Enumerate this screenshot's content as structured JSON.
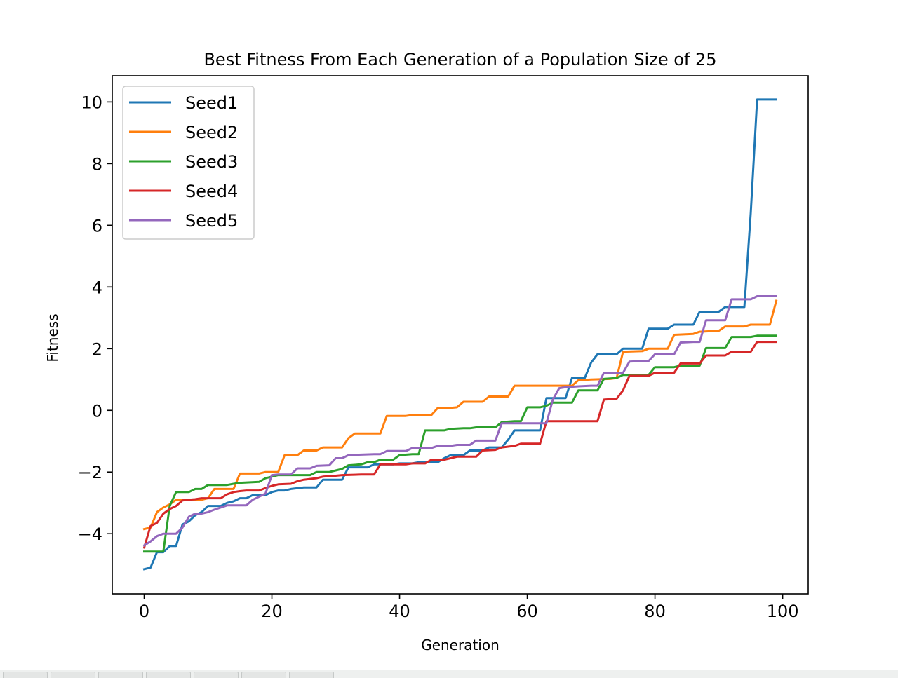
{
  "chart_data": {
    "type": "line",
    "title": "Best Fitness From Each Generation of a Population Size of 25",
    "xlabel": "Generation",
    "ylabel": "Fitness",
    "xlim": [
      -5,
      104
    ],
    "ylim": [
      -5.95,
      10.85
    ],
    "xticks": [
      0,
      20,
      40,
      60,
      80,
      100
    ],
    "xtick_labels": [
      "0",
      "20",
      "40",
      "60",
      "80",
      "100"
    ],
    "yticks": [
      -4,
      -2,
      0,
      2,
      4,
      6,
      8,
      10
    ],
    "ytick_labels": [
      "−4",
      "−2",
      "0",
      "2",
      "4",
      "6",
      "8",
      "10"
    ],
    "grid": false,
    "legend_position": "upper-left",
    "series": [
      {
        "name": "Seed1",
        "color": "#1f77b4",
        "points": [
          [
            0,
            -5.15
          ],
          [
            1,
            -5.1
          ],
          [
            2,
            -4.6
          ],
          [
            3,
            -4.6
          ],
          [
            4,
            -4.4
          ],
          [
            5,
            -4.4
          ],
          [
            6,
            -3.7
          ],
          [
            7,
            -3.6
          ],
          [
            8,
            -3.4
          ],
          [
            9,
            -3.3
          ],
          [
            10,
            -3.1
          ],
          [
            12,
            -3.1
          ],
          [
            13,
            -3.0
          ],
          [
            14,
            -2.95
          ],
          [
            15,
            -2.85
          ],
          [
            16,
            -2.85
          ],
          [
            17,
            -2.75
          ],
          [
            19,
            -2.75
          ],
          [
            20,
            -2.65
          ],
          [
            21,
            -2.6
          ],
          [
            22,
            -2.6
          ],
          [
            23,
            -2.55
          ],
          [
            25,
            -2.5
          ],
          [
            27,
            -2.5
          ],
          [
            28,
            -2.25
          ],
          [
            31,
            -2.25
          ],
          [
            32,
            -1.85
          ],
          [
            35,
            -1.85
          ],
          [
            36,
            -1.75
          ],
          [
            39,
            -1.75
          ],
          [
            40,
            -1.72
          ],
          [
            42,
            -1.72
          ],
          [
            43,
            -1.68
          ],
          [
            46,
            -1.68
          ],
          [
            47,
            -1.55
          ],
          [
            48,
            -1.45
          ],
          [
            50,
            -1.45
          ],
          [
            51,
            -1.3
          ],
          [
            53,
            -1.3
          ],
          [
            54,
            -1.2
          ],
          [
            56,
            -1.2
          ],
          [
            57,
            -0.95
          ],
          [
            58,
            -0.65
          ],
          [
            61,
            -0.65
          ],
          [
            62,
            -0.65
          ],
          [
            63,
            0.4
          ],
          [
            64,
            0.4
          ],
          [
            66,
            0.4
          ],
          [
            67,
            1.05
          ],
          [
            69,
            1.05
          ],
          [
            70,
            1.55
          ],
          [
            71,
            1.82
          ],
          [
            74,
            1.82
          ],
          [
            75,
            2.0
          ],
          [
            78,
            2.0
          ],
          [
            79,
            2.65
          ],
          [
            82,
            2.65
          ],
          [
            83,
            2.78
          ],
          [
            86,
            2.78
          ],
          [
            87,
            3.2
          ],
          [
            90,
            3.2
          ],
          [
            91,
            3.35
          ],
          [
            94,
            3.35
          ],
          [
            95,
            6.4
          ],
          [
            96,
            10.08
          ],
          [
            97,
            10.08
          ],
          [
            99,
            10.08
          ]
        ]
      },
      {
        "name": "Seed2",
        "color": "#ff7f0e",
        "points": [
          [
            0,
            -3.85
          ],
          [
            1,
            -3.8
          ],
          [
            2,
            -3.3
          ],
          [
            3,
            -3.15
          ],
          [
            4,
            -3.05
          ],
          [
            5,
            -2.9
          ],
          [
            6,
            -2.9
          ],
          [
            9,
            -2.9
          ],
          [
            10,
            -2.85
          ],
          [
            11,
            -2.55
          ],
          [
            14,
            -2.55
          ],
          [
            15,
            -2.05
          ],
          [
            18,
            -2.05
          ],
          [
            19,
            -2.0
          ],
          [
            21,
            -2.0
          ],
          [
            22,
            -1.45
          ],
          [
            24,
            -1.45
          ],
          [
            25,
            -1.3
          ],
          [
            27,
            -1.3
          ],
          [
            28,
            -1.2
          ],
          [
            31,
            -1.2
          ],
          [
            32,
            -0.9
          ],
          [
            33,
            -0.75
          ],
          [
            37,
            -0.75
          ],
          [
            38,
            -0.18
          ],
          [
            41,
            -0.18
          ],
          [
            42,
            -0.15
          ],
          [
            45,
            -0.15
          ],
          [
            46,
            0.08
          ],
          [
            48,
            0.08
          ],
          [
            49,
            0.1
          ],
          [
            50,
            0.28
          ],
          [
            53,
            0.28
          ],
          [
            54,
            0.45
          ],
          [
            57,
            0.45
          ],
          [
            58,
            0.8
          ],
          [
            67,
            0.8
          ],
          [
            68,
            0.98
          ],
          [
            70,
            1.0
          ],
          [
            73,
            1.02
          ],
          [
            74,
            1.05
          ],
          [
            75,
            1.9
          ],
          [
            78,
            1.92
          ],
          [
            79,
            2.0
          ],
          [
            82,
            2.0
          ],
          [
            83,
            2.45
          ],
          [
            86,
            2.48
          ],
          [
            87,
            2.55
          ],
          [
            90,
            2.58
          ],
          [
            91,
            2.72
          ],
          [
            94,
            2.72
          ],
          [
            95,
            2.78
          ],
          [
            98,
            2.78
          ],
          [
            99,
            3.55
          ]
        ]
      },
      {
        "name": "Seed3",
        "color": "#2ca02c",
        "points": [
          [
            0,
            -4.58
          ],
          [
            3,
            -4.58
          ],
          [
            4,
            -3.1
          ],
          [
            5,
            -2.65
          ],
          [
            7,
            -2.65
          ],
          [
            8,
            -2.55
          ],
          [
            9,
            -2.55
          ],
          [
            10,
            -2.42
          ],
          [
            13,
            -2.42
          ],
          [
            14,
            -2.38
          ],
          [
            15,
            -2.35
          ],
          [
            18,
            -2.32
          ],
          [
            19,
            -2.2
          ],
          [
            20,
            -2.15
          ],
          [
            21,
            -2.1
          ],
          [
            26,
            -2.1
          ],
          [
            27,
            -2.0
          ],
          [
            29,
            -2.0
          ],
          [
            30,
            -1.95
          ],
          [
            31,
            -1.9
          ],
          [
            32,
            -1.78
          ],
          [
            34,
            -1.75
          ],
          [
            35,
            -1.68
          ],
          [
            36,
            -1.68
          ],
          [
            37,
            -1.6
          ],
          [
            39,
            -1.6
          ],
          [
            40,
            -1.45
          ],
          [
            42,
            -1.42
          ],
          [
            43,
            -1.42
          ],
          [
            44,
            -0.65
          ],
          [
            47,
            -0.65
          ],
          [
            48,
            -0.6
          ],
          [
            50,
            -0.58
          ],
          [
            51,
            -0.58
          ],
          [
            52,
            -0.55
          ],
          [
            55,
            -0.55
          ],
          [
            56,
            -0.38
          ],
          [
            58,
            -0.35
          ],
          [
            59,
            -0.35
          ],
          [
            60,
            0.1
          ],
          [
            62,
            0.1
          ],
          [
            63,
            0.15
          ],
          [
            64,
            0.25
          ],
          [
            67,
            0.25
          ],
          [
            68,
            0.65
          ],
          [
            71,
            0.65
          ],
          [
            72,
            1.02
          ],
          [
            74,
            1.05
          ],
          [
            75,
            1.15
          ],
          [
            79,
            1.15
          ],
          [
            80,
            1.4
          ],
          [
            83,
            1.4
          ],
          [
            84,
            1.45
          ],
          [
            87,
            1.45
          ],
          [
            88,
            2.02
          ],
          [
            91,
            2.02
          ],
          [
            92,
            2.38
          ],
          [
            95,
            2.38
          ],
          [
            96,
            2.42
          ],
          [
            99,
            2.42
          ]
        ]
      },
      {
        "name": "Seed4",
        "color": "#d62728",
        "points": [
          [
            0,
            -4.45
          ],
          [
            1,
            -3.75
          ],
          [
            2,
            -3.65
          ],
          [
            3,
            -3.35
          ],
          [
            4,
            -3.2
          ],
          [
            5,
            -3.1
          ],
          [
            6,
            -2.92
          ],
          [
            7,
            -2.9
          ],
          [
            8,
            -2.88
          ],
          [
            9,
            -2.85
          ],
          [
            10,
            -2.85
          ],
          [
            12,
            -2.85
          ],
          [
            13,
            -2.72
          ],
          [
            14,
            -2.65
          ],
          [
            15,
            -2.62
          ],
          [
            16,
            -2.6
          ],
          [
            18,
            -2.6
          ],
          [
            19,
            -2.52
          ],
          [
            20,
            -2.45
          ],
          [
            21,
            -2.4
          ],
          [
            23,
            -2.38
          ],
          [
            24,
            -2.3
          ],
          [
            25,
            -2.25
          ],
          [
            27,
            -2.2
          ],
          [
            28,
            -2.15
          ],
          [
            30,
            -2.12
          ],
          [
            31,
            -2.1
          ],
          [
            34,
            -2.08
          ],
          [
            36,
            -2.08
          ],
          [
            37,
            -1.75
          ],
          [
            41,
            -1.75
          ],
          [
            42,
            -1.72
          ],
          [
            44,
            -1.72
          ],
          [
            45,
            -1.6
          ],
          [
            47,
            -1.6
          ],
          [
            48,
            -1.55
          ],
          [
            49,
            -1.5
          ],
          [
            52,
            -1.5
          ],
          [
            53,
            -1.3
          ],
          [
            55,
            -1.28
          ],
          [
            56,
            -1.2
          ],
          [
            58,
            -1.15
          ],
          [
            59,
            -1.08
          ],
          [
            62,
            -1.08
          ],
          [
            63,
            -0.35
          ],
          [
            70,
            -0.35
          ],
          [
            71,
            -0.35
          ],
          [
            72,
            0.35
          ],
          [
            74,
            0.38
          ],
          [
            75,
            0.65
          ],
          [
            76,
            1.12
          ],
          [
            79,
            1.12
          ],
          [
            80,
            1.22
          ],
          [
            83,
            1.22
          ],
          [
            84,
            1.52
          ],
          [
            87,
            1.52
          ],
          [
            88,
            1.78
          ],
          [
            91,
            1.78
          ],
          [
            92,
            1.9
          ],
          [
            95,
            1.9
          ],
          [
            96,
            2.22
          ],
          [
            99,
            2.22
          ]
        ]
      },
      {
        "name": "Seed5",
        "color": "#9467bd",
        "points": [
          [
            0,
            -4.38
          ],
          [
            1,
            -4.25
          ],
          [
            2,
            -4.08
          ],
          [
            3,
            -4.0
          ],
          [
            5,
            -4.0
          ],
          [
            6,
            -3.8
          ],
          [
            7,
            -3.45
          ],
          [
            8,
            -3.35
          ],
          [
            9,
            -3.35
          ],
          [
            10,
            -3.3
          ],
          [
            11,
            -3.22
          ],
          [
            12,
            -3.15
          ],
          [
            13,
            -3.08
          ],
          [
            16,
            -3.08
          ],
          [
            17,
            -2.9
          ],
          [
            19,
            -2.7
          ],
          [
            20,
            -2.1
          ],
          [
            21,
            -2.08
          ],
          [
            23,
            -2.08
          ],
          [
            24,
            -1.88
          ],
          [
            26,
            -1.88
          ],
          [
            27,
            -1.8
          ],
          [
            29,
            -1.78
          ],
          [
            30,
            -1.55
          ],
          [
            31,
            -1.55
          ],
          [
            32,
            -1.45
          ],
          [
            36,
            -1.42
          ],
          [
            37,
            -1.42
          ],
          [
            38,
            -1.32
          ],
          [
            41,
            -1.32
          ],
          [
            42,
            -1.22
          ],
          [
            45,
            -1.22
          ],
          [
            46,
            -1.15
          ],
          [
            48,
            -1.15
          ],
          [
            49,
            -1.12
          ],
          [
            51,
            -1.12
          ],
          [
            52,
            -0.98
          ],
          [
            55,
            -0.98
          ],
          [
            56,
            -0.42
          ],
          [
            58,
            -0.42
          ],
          [
            59,
            -0.42
          ],
          [
            62,
            -0.42
          ],
          [
            63,
            -0.42
          ],
          [
            64,
            0.35
          ],
          [
            65,
            0.72
          ],
          [
            66,
            0.75
          ],
          [
            68,
            0.78
          ],
          [
            70,
            0.8
          ],
          [
            71,
            0.8
          ],
          [
            72,
            1.22
          ],
          [
            75,
            1.22
          ],
          [
            76,
            1.58
          ],
          [
            78,
            1.6
          ],
          [
            79,
            1.6
          ],
          [
            80,
            1.82
          ],
          [
            83,
            1.82
          ],
          [
            84,
            2.2
          ],
          [
            86,
            2.22
          ],
          [
            87,
            2.22
          ],
          [
            88,
            2.92
          ],
          [
            91,
            2.92
          ],
          [
            92,
            3.6
          ],
          [
            95,
            3.6
          ],
          [
            96,
            3.7
          ],
          [
            99,
            3.7
          ]
        ]
      }
    ]
  }
}
